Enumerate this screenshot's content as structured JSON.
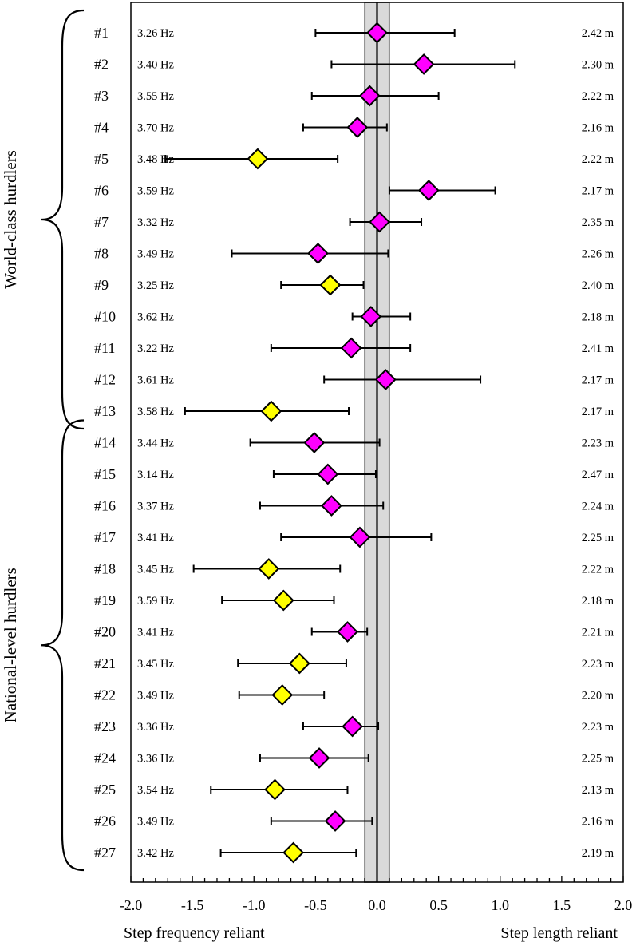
{
  "chart_data": {
    "type": "forest",
    "xlim": [
      -2.0,
      2.0
    ],
    "x_ticks": [
      "-2.0",
      "-1.5",
      "-1.0",
      "-0.5",
      "0.0",
      "0.5",
      "1.0",
      "1.5",
      "2.0"
    ],
    "x_tick_values": [
      -2.0,
      -1.5,
      -1.0,
      -0.5,
      0.0,
      0.5,
      1.0,
      1.5,
      2.0
    ],
    "xlabel_left": "Step frequency reliant",
    "xlabel_right": "Step length reliant",
    "reference_band": [
      -0.1,
      0.1
    ],
    "reference_line": 0.0,
    "colors": {
      "magenta": "#ff00ff",
      "yellow": "#ffff00",
      "band": "#d9d9d9",
      "band_edge": "#8c8c8c",
      "ink": "#000000"
    },
    "groups": [
      {
        "label": "World-class hurdlers",
        "first": 1,
        "last": 13
      },
      {
        "label": "National-level hurdlers",
        "first": 14,
        "last": 27
      }
    ],
    "rows": [
      {
        "id": "#1",
        "freq": "3.26 Hz",
        "length": "2.42 m",
        "value": 0.0,
        "lo": -0.5,
        "hi": 0.63,
        "color": "magenta"
      },
      {
        "id": "#2",
        "freq": "3.40 Hz",
        "length": "2.30 m",
        "value": 0.38,
        "lo": -0.37,
        "hi": 1.12,
        "color": "magenta"
      },
      {
        "id": "#3",
        "freq": "3.55 Hz",
        "length": "2.22 m",
        "value": -0.06,
        "lo": -0.53,
        "hi": 0.5,
        "color": "magenta"
      },
      {
        "id": "#4",
        "freq": "3.70 Hz",
        "length": "2.16 m",
        "value": -0.16,
        "lo": -0.6,
        "hi": 0.08,
        "color": "magenta"
      },
      {
        "id": "#5",
        "freq": "3.48 Hz",
        "length": "2.22 m",
        "value": -0.97,
        "lo": -1.72,
        "hi": -0.32,
        "color": "yellow"
      },
      {
        "id": "#6",
        "freq": "3.59 Hz",
        "length": "2.17 m",
        "value": 0.42,
        "lo": 0.1,
        "hi": 0.96,
        "color": "magenta"
      },
      {
        "id": "#7",
        "freq": "3.32 Hz",
        "length": "2.35 m",
        "value": 0.02,
        "lo": -0.22,
        "hi": 0.36,
        "color": "magenta"
      },
      {
        "id": "#8",
        "freq": "3.49 Hz",
        "length": "2.26 m",
        "value": -0.48,
        "lo": -1.18,
        "hi": 0.09,
        "color": "magenta"
      },
      {
        "id": "#9",
        "freq": "3.25 Hz",
        "length": "2.40 m",
        "value": -0.38,
        "lo": -0.78,
        "hi": -0.11,
        "color": "yellow"
      },
      {
        "id": "#10",
        "freq": "3.62 Hz",
        "length": "2.18 m",
        "value": -0.05,
        "lo": -0.2,
        "hi": 0.27,
        "color": "magenta"
      },
      {
        "id": "#11",
        "freq": "3.22 Hz",
        "length": "2.41 m",
        "value": -0.21,
        "lo": -0.86,
        "hi": 0.27,
        "color": "magenta"
      },
      {
        "id": "#12",
        "freq": "3.61 Hz",
        "length": "2.17 m",
        "value": 0.07,
        "lo": -0.43,
        "hi": 0.84,
        "color": "magenta"
      },
      {
        "id": "#13",
        "freq": "3.58 Hz",
        "length": "2.17 m",
        "value": -0.86,
        "lo": -1.56,
        "hi": -0.23,
        "color": "yellow"
      },
      {
        "id": "#14",
        "freq": "3.44 Hz",
        "length": "2.23 m",
        "value": -0.51,
        "lo": -1.03,
        "hi": 0.02,
        "color": "magenta"
      },
      {
        "id": "#15",
        "freq": "3.14 Hz",
        "length": "2.47 m",
        "value": -0.4,
        "lo": -0.84,
        "hi": -0.01,
        "color": "magenta"
      },
      {
        "id": "#16",
        "freq": "3.37 Hz",
        "length": "2.24 m",
        "value": -0.37,
        "lo": -0.95,
        "hi": 0.05,
        "color": "magenta"
      },
      {
        "id": "#17",
        "freq": "3.41 Hz",
        "length": "2.25 m",
        "value": -0.14,
        "lo": -0.78,
        "hi": 0.44,
        "color": "magenta"
      },
      {
        "id": "#18",
        "freq": "3.45 Hz",
        "length": "2.22 m",
        "value": -0.88,
        "lo": -1.49,
        "hi": -0.3,
        "color": "yellow"
      },
      {
        "id": "#19",
        "freq": "3.59 Hz",
        "length": "2.18 m",
        "value": -0.76,
        "lo": -1.26,
        "hi": -0.35,
        "color": "yellow"
      },
      {
        "id": "#20",
        "freq": "3.41 Hz",
        "length": "2.21 m",
        "value": -0.24,
        "lo": -0.53,
        "hi": -0.08,
        "color": "magenta"
      },
      {
        "id": "#21",
        "freq": "3.45 Hz",
        "length": "2.23 m",
        "value": -0.63,
        "lo": -1.13,
        "hi": -0.25,
        "color": "yellow"
      },
      {
        "id": "#22",
        "freq": "3.49 Hz",
        "length": "2.20 m",
        "value": -0.77,
        "lo": -1.12,
        "hi": -0.43,
        "color": "yellow"
      },
      {
        "id": "#23",
        "freq": "3.36 Hz",
        "length": "2.23 m",
        "value": -0.2,
        "lo": -0.6,
        "hi": 0.01,
        "color": "magenta"
      },
      {
        "id": "#24",
        "freq": "3.36 Hz",
        "length": "2.25 m",
        "value": -0.47,
        "lo": -0.95,
        "hi": -0.07,
        "color": "magenta"
      },
      {
        "id": "#25",
        "freq": "3.54 Hz",
        "length": "2.13 m",
        "value": -0.83,
        "lo": -1.35,
        "hi": -0.24,
        "color": "yellow"
      },
      {
        "id": "#26",
        "freq": "3.49 Hz",
        "length": "2.16 m",
        "value": -0.34,
        "lo": -0.86,
        "hi": -0.04,
        "color": "magenta"
      },
      {
        "id": "#27",
        "freq": "3.42 Hz",
        "length": "2.19 m",
        "value": -0.68,
        "lo": -1.27,
        "hi": -0.17,
        "color": "yellow"
      }
    ]
  }
}
